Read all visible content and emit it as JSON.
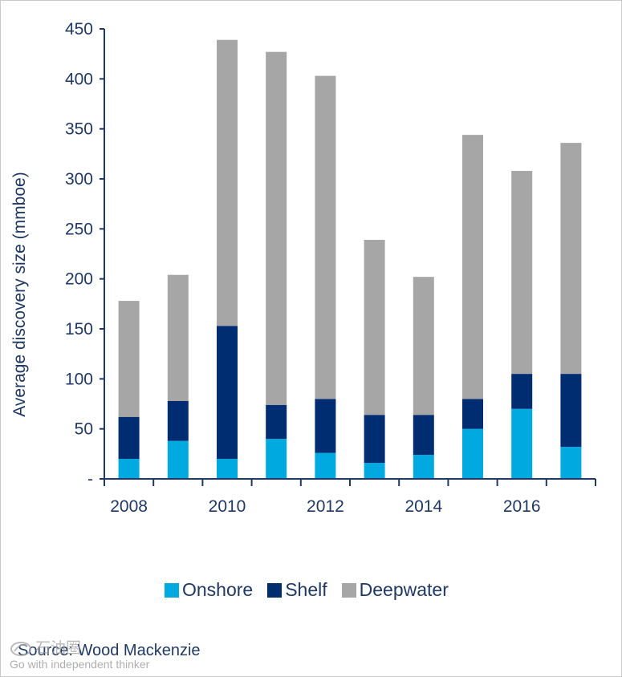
{
  "chart_data": {
    "type": "bar",
    "stacked": true,
    "categories": [
      "2008",
      "2009",
      "2010",
      "2011",
      "2012",
      "2013",
      "2014",
      "2015",
      "2016",
      "2017"
    ],
    "x_tick_labels": [
      "2008",
      "",
      "2010",
      "",
      "2012",
      "",
      "2014",
      "",
      "2016",
      ""
    ],
    "series": [
      {
        "name": "Onshore",
        "color": "#00a9e0",
        "values": [
          20,
          38,
          20,
          40,
          26,
          16,
          24,
          50,
          70,
          32
        ]
      },
      {
        "name": "Shelf",
        "color": "#002d72",
        "values": [
          42,
          40,
          133,
          34,
          54,
          48,
          40,
          30,
          35,
          73
        ]
      },
      {
        "name": "Deepwater",
        "color": "#a6a6a6",
        "values": [
          116,
          126,
          286,
          353,
          323,
          175,
          138,
          264,
          203,
          231
        ]
      }
    ],
    "ylabel": "Average discovery size (mmboe)",
    "ylim": [
      0,
      450
    ],
    "y_ticks": [
      0,
      50,
      100,
      150,
      200,
      250,
      300,
      350,
      400,
      450
    ],
    "y_tick_labels": [
      "-",
      "50",
      "100",
      "150",
      "200",
      "250",
      "300",
      "350",
      "400",
      "450"
    ],
    "legend_position": "bottom",
    "grid": false
  },
  "source": "Source: Wood Mackenzie",
  "watermark": {
    "logo_icon": "watermark-logo-icon",
    "title": "石油圈",
    "subtitle": "Go with independent thinker"
  }
}
